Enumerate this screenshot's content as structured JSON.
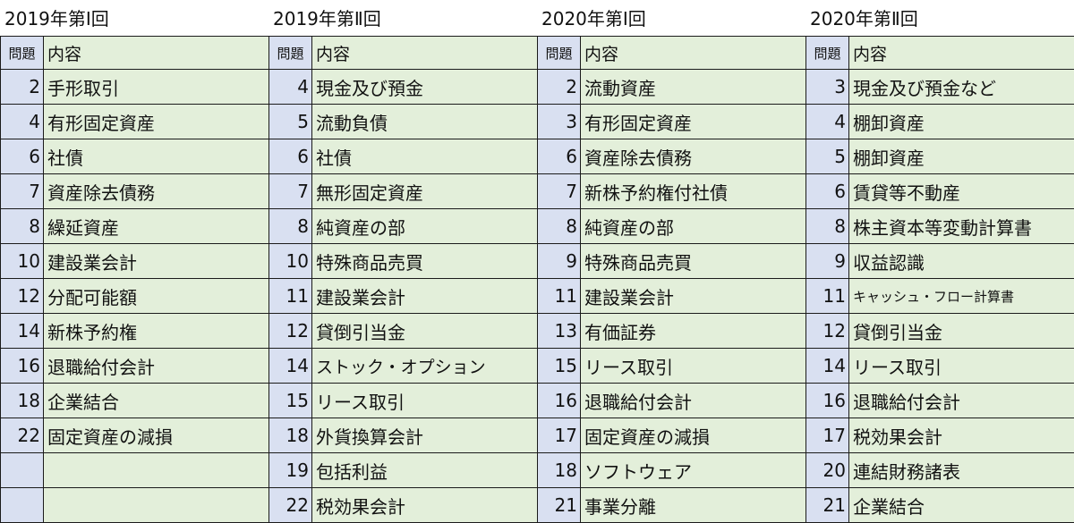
{
  "blocks": [
    {
      "title": "2019年第Ⅰ回",
      "header": {
        "num": "問題",
        "text": "内容"
      },
      "rows": [
        {
          "num": "2",
          "text": "手形取引"
        },
        {
          "num": "4",
          "text": "有形固定資産"
        },
        {
          "num": "6",
          "text": "社債"
        },
        {
          "num": "7",
          "text": "資産除去債務"
        },
        {
          "num": "8",
          "text": "繰延資産"
        },
        {
          "num": "10",
          "text": "建設業会計"
        },
        {
          "num": "12",
          "text": "分配可能額"
        },
        {
          "num": "14",
          "text": "新株予約権"
        },
        {
          "num": "16",
          "text": "退職給付会計"
        },
        {
          "num": "18",
          "text": "企業結合"
        },
        {
          "num": "22",
          "text": "固定資産の減損"
        },
        {
          "num": "",
          "text": ""
        },
        {
          "num": "",
          "text": ""
        }
      ]
    },
    {
      "title": "2019年第Ⅱ回",
      "header": {
        "num": "問題",
        "text": "内容"
      },
      "rows": [
        {
          "num": "4",
          "text": "現金及び預金"
        },
        {
          "num": "5",
          "text": "流動負債"
        },
        {
          "num": "6",
          "text": "社債"
        },
        {
          "num": "7",
          "text": "無形固定資産"
        },
        {
          "num": "8",
          "text": "純資産の部"
        },
        {
          "num": "10",
          "text": "特殊商品売買"
        },
        {
          "num": "11",
          "text": "建設業会計"
        },
        {
          "num": "12",
          "text": "貸倒引当金"
        },
        {
          "num": "14",
          "text": "ストック・オプション"
        },
        {
          "num": "15",
          "text": "リース取引"
        },
        {
          "num": "18",
          "text": "外貨換算会計"
        },
        {
          "num": "19",
          "text": "包括利益"
        },
        {
          "num": "22",
          "text": "税効果会計"
        }
      ]
    },
    {
      "title": "2020年第Ⅰ回",
      "header": {
        "num": "問題",
        "text": "内容"
      },
      "rows": [
        {
          "num": "2",
          "text": "流動資産"
        },
        {
          "num": "3",
          "text": "有形固定資産"
        },
        {
          "num": "6",
          "text": "資産除去債務"
        },
        {
          "num": "7",
          "text": "新株予約権付社債"
        },
        {
          "num": "8",
          "text": "純資産の部"
        },
        {
          "num": "9",
          "text": "特殊商品売買"
        },
        {
          "num": "11",
          "text": "建設業会計"
        },
        {
          "num": "13",
          "text": "有価証券"
        },
        {
          "num": "15",
          "text": "リース取引"
        },
        {
          "num": "16",
          "text": "退職給付会計"
        },
        {
          "num": "17",
          "text": "固定資産の減損"
        },
        {
          "num": "18",
          "text": "ソフトウェア"
        },
        {
          "num": "21",
          "text": "事業分離"
        }
      ]
    },
    {
      "title": "2020年第Ⅱ回",
      "header": {
        "num": "問題",
        "text": "内容"
      },
      "rows": [
        {
          "num": "3",
          "text": "現金及び預金など"
        },
        {
          "num": "4",
          "text": "棚卸資産"
        },
        {
          "num": "5",
          "text": "棚卸資産"
        },
        {
          "num": "6",
          "text": "賃貸等不動産"
        },
        {
          "num": "8",
          "text": "株主資本等変動計算書"
        },
        {
          "num": "9",
          "text": "収益認識"
        },
        {
          "num": "11",
          "text": "キャッシュ・フロー計算書"
        },
        {
          "num": "12",
          "text": "貸倒引当金"
        },
        {
          "num": "14",
          "text": "リース取引"
        },
        {
          "num": "16",
          "text": "退職給付会計"
        },
        {
          "num": "17",
          "text": "税効果会計"
        },
        {
          "num": "20",
          "text": "連結財務諸表"
        },
        {
          "num": "21",
          "text": "企業結合"
        }
      ]
    }
  ]
}
